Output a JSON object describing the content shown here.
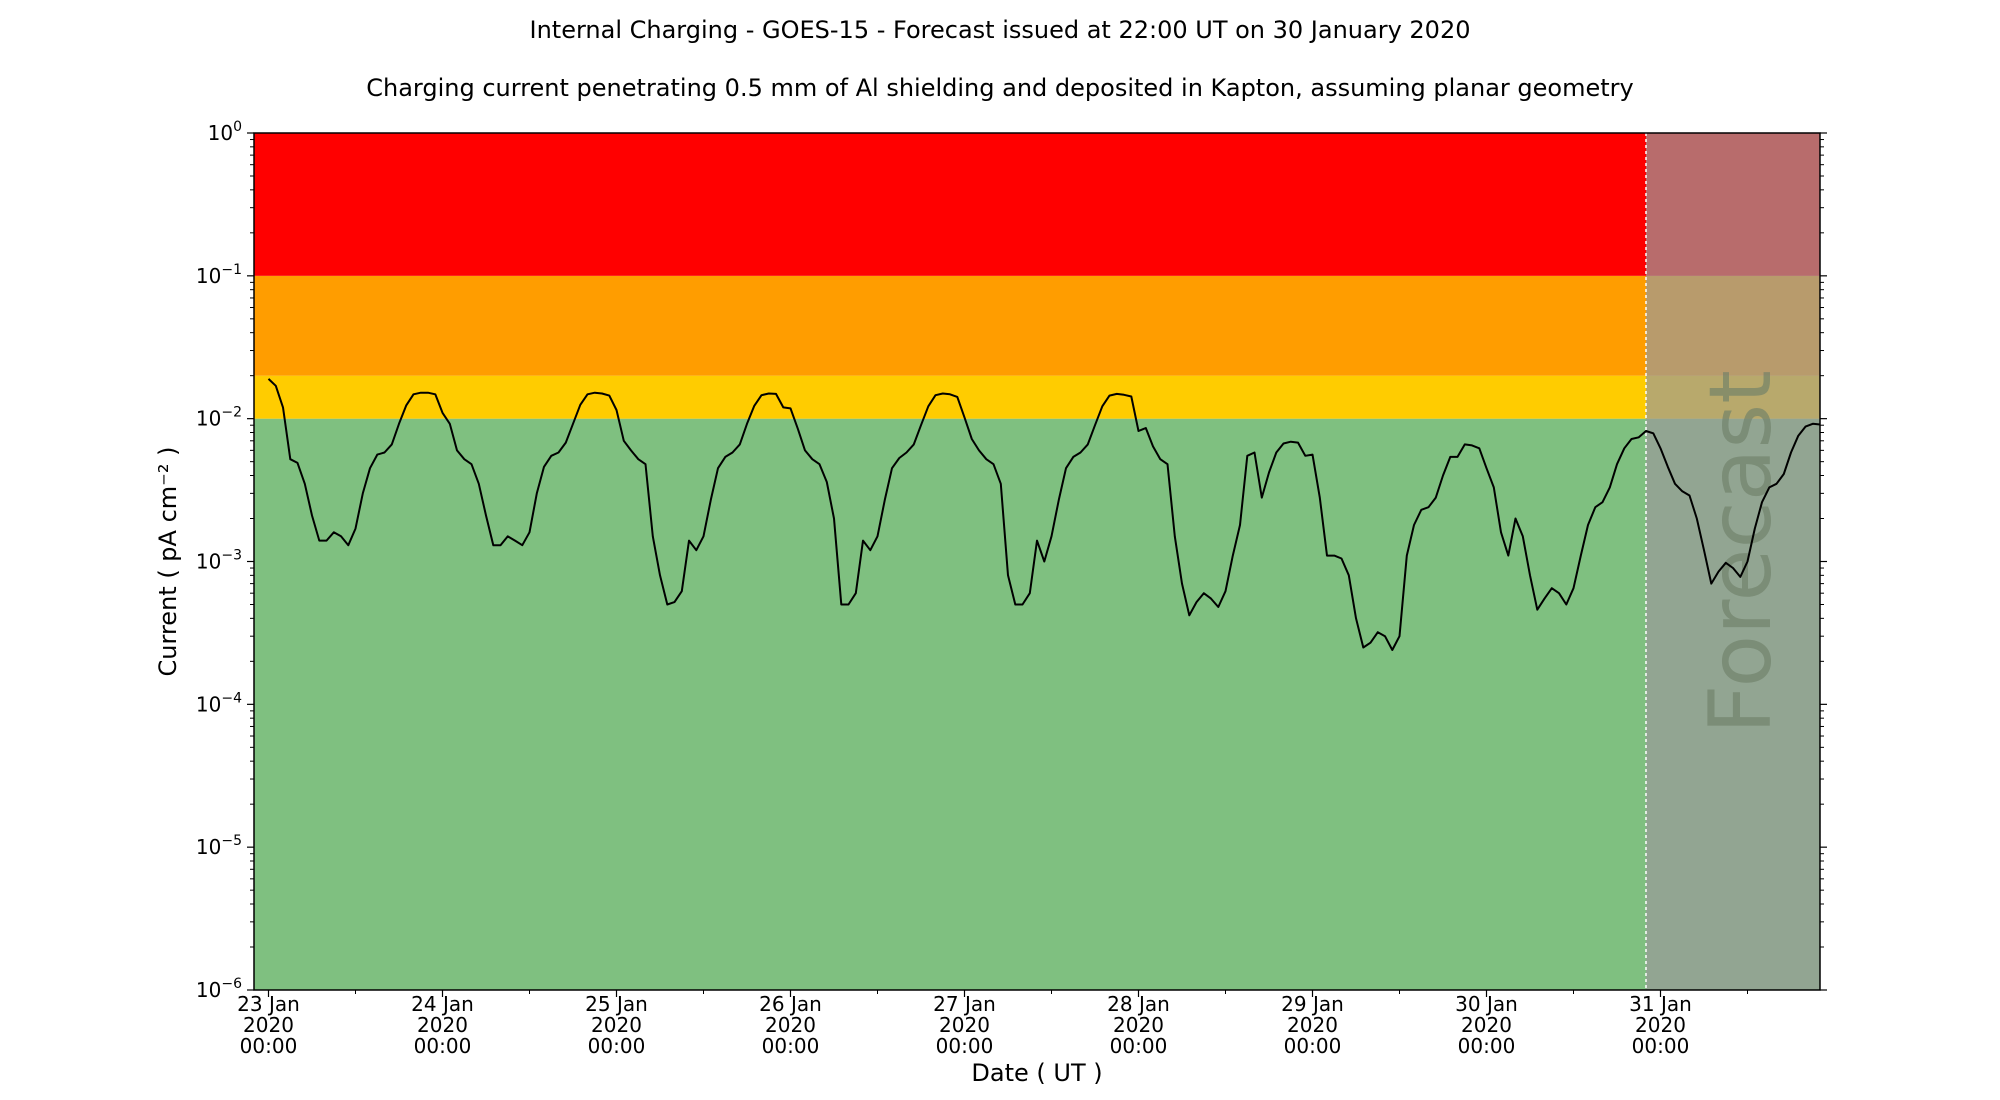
{
  "chart_data": {
    "type": "line",
    "title": "Internal Charging - GOES-15 - Forecast issued at 22:00 UT on 30 January 2020",
    "subtitle": "Charging current penetrating 0.5 mm of Al shielding and deposited in Kapton, assuming planar geometry",
    "xlabel": "Date ( UT )",
    "ylabel": "Current ( pA cm⁻² )",
    "y_scale": "log",
    "ylim": [
      1e-06,
      1
    ],
    "xlim": [
      "2020-01-22 22:00",
      "2020-01-31 22:00"
    ],
    "forecast_start": "2020-01-30 22:00",
    "forecast_label": "Forecast",
    "grid": false,
    "x_ticks": [
      {
        "date": "2020-01-23 00:00",
        "label": "23 Jan\n2020\n00:00"
      },
      {
        "date": "2020-01-24 00:00",
        "label": "24 Jan\n2020\n00:00"
      },
      {
        "date": "2020-01-25 00:00",
        "label": "25 Jan\n2020\n00:00"
      },
      {
        "date": "2020-01-26 00:00",
        "label": "26 Jan\n2020\n00:00"
      },
      {
        "date": "2020-01-27 00:00",
        "label": "27 Jan\n2020\n00:00"
      },
      {
        "date": "2020-01-28 00:00",
        "label": "28 Jan\n2020\n00:00"
      },
      {
        "date": "2020-01-29 00:00",
        "label": "29 Jan\n2020\n00:00"
      },
      {
        "date": "2020-01-30 00:00",
        "label": "30 Jan\n2020\n00:00"
      },
      {
        "date": "2020-01-31 00:00",
        "label": "31 Jan\n2020\n00:00"
      }
    ],
    "y_ticks": [
      {
        "value": 1e-06,
        "base": "10",
        "exp": "−6"
      },
      {
        "value": 1e-05,
        "base": "10",
        "exp": "−5"
      },
      {
        "value": 0.0001,
        "base": "10",
        "exp": "−4"
      },
      {
        "value": 0.001,
        "base": "10",
        "exp": "−3"
      },
      {
        "value": 0.01,
        "base": "10",
        "exp": "−2"
      },
      {
        "value": 0.1,
        "base": "10",
        "exp": "−1"
      },
      {
        "value": 1,
        "base": "10",
        "exp": "0"
      }
    ],
    "bands": [
      {
        "from": 1e-06,
        "to": 0.01,
        "color": "#7fc080"
      },
      {
        "from": 0.01,
        "to": 0.02,
        "color": "#ffcc00"
      },
      {
        "from": 0.02,
        "to": 0.1,
        "color": "#ff9d00"
      },
      {
        "from": 0.1,
        "to": 1,
        "color": "#ff0000"
      }
    ],
    "forecast_overlay_color": "#9a9a9a",
    "line_color": "#000000",
    "series": [
      {
        "x": [
          "2020-01-23 00:00",
          "2020-01-23 01:00",
          "2020-01-23 02:00",
          "2020-01-23 03:00",
          "2020-01-23 04:00",
          "2020-01-23 05:00",
          "2020-01-23 06:00",
          "2020-01-23 07:00",
          "2020-01-23 08:00",
          "2020-01-23 09:00",
          "2020-01-23 10:00",
          "2020-01-23 11:00",
          "2020-01-23 12:00",
          "2020-01-23 13:00",
          "2020-01-23 14:00",
          "2020-01-23 15:00",
          "2020-01-23 16:00",
          "2020-01-23 17:00",
          "2020-01-23 18:00",
          "2020-01-23 19:00",
          "2020-01-23 20:00",
          "2020-01-23 21:00",
          "2020-01-23 22:00",
          "2020-01-23 23:00",
          "2020-01-24 00:00",
          "2020-01-24 01:00",
          "2020-01-24 02:00",
          "2020-01-24 03:00",
          "2020-01-24 04:00",
          "2020-01-24 05:00",
          "2020-01-24 06:00",
          "2020-01-24 07:00",
          "2020-01-24 08:00",
          "2020-01-24 09:00",
          "2020-01-24 10:00",
          "2020-01-24 11:00",
          "2020-01-24 12:00",
          "2020-01-24 13:00",
          "2020-01-24 14:00",
          "2020-01-24 15:00",
          "2020-01-24 16:00",
          "2020-01-24 17:00",
          "2020-01-24 18:00",
          "2020-01-24 19:00",
          "2020-01-24 20:00",
          "2020-01-24 21:00",
          "2020-01-24 22:00",
          "2020-01-24 23:00",
          "2020-01-25 00:00",
          "2020-01-25 01:00",
          "2020-01-25 02:00",
          "2020-01-25 03:00",
          "2020-01-25 04:00",
          "2020-01-25 05:00",
          "2020-01-25 06:00",
          "2020-01-25 07:00",
          "2020-01-25 08:00",
          "2020-01-25 09:00",
          "2020-01-25 10:00",
          "2020-01-25 11:00",
          "2020-01-25 12:00",
          "2020-01-25 13:00",
          "2020-01-25 14:00",
          "2020-01-25 15:00",
          "2020-01-25 16:00",
          "2020-01-25 17:00",
          "2020-01-25 18:00",
          "2020-01-25 19:00",
          "2020-01-25 20:00",
          "2020-01-25 21:00",
          "2020-01-25 22:00",
          "2020-01-25 23:00",
          "2020-01-26 00:00",
          "2020-01-26 01:00",
          "2020-01-26 02:00",
          "2020-01-26 03:00",
          "2020-01-26 04:00",
          "2020-01-26 05:00",
          "2020-01-26 06:00",
          "2020-01-26 07:00",
          "2020-01-26 08:00",
          "2020-01-26 09:00",
          "2020-01-26 10:00",
          "2020-01-26 11:00",
          "2020-01-26 12:00",
          "2020-01-26 13:00",
          "2020-01-26 14:00",
          "2020-01-26 15:00",
          "2020-01-26 16:00",
          "2020-01-26 17:00",
          "2020-01-26 18:00",
          "2020-01-26 19:00",
          "2020-01-26 20:00",
          "2020-01-26 21:00",
          "2020-01-26 22:00",
          "2020-01-26 23:00",
          "2020-01-27 00:00",
          "2020-01-27 01:00",
          "2020-01-27 02:00",
          "2020-01-27 03:00",
          "2020-01-27 04:00",
          "2020-01-27 05:00",
          "2020-01-27 06:00",
          "2020-01-27 07:00",
          "2020-01-27 08:00",
          "2020-01-27 09:00",
          "2020-01-27 10:00",
          "2020-01-27 11:00",
          "2020-01-27 12:00",
          "2020-01-27 13:00",
          "2020-01-27 14:00",
          "2020-01-27 15:00",
          "2020-01-27 16:00",
          "2020-01-27 17:00",
          "2020-01-27 18:00",
          "2020-01-27 19:00",
          "2020-01-27 20:00",
          "2020-01-27 21:00",
          "2020-01-27 22:00",
          "2020-01-27 23:00",
          "2020-01-28 00:00",
          "2020-01-28 01:00",
          "2020-01-28 02:00",
          "2020-01-28 03:00",
          "2020-01-28 04:00",
          "2020-01-28 05:00",
          "2020-01-28 06:00",
          "2020-01-28 07:00",
          "2020-01-28 08:00",
          "2020-01-28 09:00",
          "2020-01-28 10:00",
          "2020-01-28 11:00",
          "2020-01-28 12:00",
          "2020-01-28 13:00",
          "2020-01-28 14:00",
          "2020-01-28 15:00",
          "2020-01-28 16:00",
          "2020-01-28 17:00",
          "2020-01-28 18:00",
          "2020-01-28 19:00",
          "2020-01-28 20:00",
          "2020-01-28 21:00",
          "2020-01-28 22:00",
          "2020-01-28 23:00",
          "2020-01-29 00:00",
          "2020-01-29 01:00",
          "2020-01-29 02:00",
          "2020-01-29 03:00",
          "2020-01-29 04:00",
          "2020-01-29 05:00",
          "2020-01-29 06:00",
          "2020-01-29 07:00",
          "2020-01-29 08:00",
          "2020-01-29 09:00",
          "2020-01-29 10:00",
          "2020-01-29 11:00",
          "2020-01-29 12:00",
          "2020-01-29 13:00",
          "2020-01-29 14:00",
          "2020-01-29 15:00",
          "2020-01-29 16:00",
          "2020-01-29 17:00",
          "2020-01-29 18:00",
          "2020-01-29 19:00",
          "2020-01-29 20:00",
          "2020-01-29 21:00",
          "2020-01-29 22:00",
          "2020-01-29 23:00",
          "2020-01-30 00:00",
          "2020-01-30 01:00",
          "2020-01-30 02:00",
          "2020-01-30 03:00",
          "2020-01-30 04:00",
          "2020-01-30 05:00",
          "2020-01-30 06:00",
          "2020-01-30 07:00",
          "2020-01-30 08:00",
          "2020-01-30 09:00",
          "2020-01-30 10:00",
          "2020-01-30 11:00",
          "2020-01-30 12:00",
          "2020-01-30 13:00",
          "2020-01-30 14:00",
          "2020-01-30 15:00",
          "2020-01-30 16:00",
          "2020-01-30 17:00",
          "2020-01-30 18:00",
          "2020-01-30 19:00",
          "2020-01-30 20:00",
          "2020-01-30 21:00",
          "2020-01-30 22:00",
          "2020-01-30 23:00",
          "2020-01-31 00:00",
          "2020-01-31 01:00",
          "2020-01-31 02:00",
          "2020-01-31 03:00",
          "2020-01-31 04:00",
          "2020-01-31 05:00",
          "2020-01-31 06:00",
          "2020-01-31 07:00",
          "2020-01-31 08:00",
          "2020-01-31 09:00",
          "2020-01-31 10:00",
          "2020-01-31 11:00",
          "2020-01-31 12:00",
          "2020-01-31 13:00",
          "2020-01-31 14:00",
          "2020-01-31 15:00",
          "2020-01-31 16:00",
          "2020-01-31 17:00",
          "2020-01-31 18:00",
          "2020-01-31 19:00",
          "2020-01-31 20:00",
          "2020-01-31 21:00",
          "2020-01-31 22:00"
        ],
        "y": [
          0.019,
          0.017,
          0.012,
          0.0052,
          0.0049,
          0.0035,
          0.0021,
          0.0014,
          0.0014,
          0.0016,
          0.0015,
          0.0013,
          0.0017,
          0.003,
          0.0045,
          0.0056,
          0.0058,
          0.0066,
          0.0092,
          0.0124,
          0.0148,
          0.0152,
          0.0152,
          0.0148,
          0.011,
          0.0092,
          0.006,
          0.0052,
          0.0048,
          0.0035,
          0.0021,
          0.0013,
          0.0013,
          0.0015,
          0.0014,
          0.0013,
          0.0016,
          0.003,
          0.0046,
          0.0055,
          0.0058,
          0.0068,
          0.0092,
          0.0125,
          0.0148,
          0.0152,
          0.015,
          0.0145,
          0.0115,
          0.007,
          0.006,
          0.0052,
          0.0048,
          0.0015,
          0.0008,
          0.0005,
          0.00052,
          0.00062,
          0.0014,
          0.0012,
          0.0015,
          0.0027,
          0.0045,
          0.0054,
          0.0058,
          0.0066,
          0.0092,
          0.0123,
          0.0146,
          0.015,
          0.0149,
          0.012,
          0.0118,
          0.0085,
          0.006,
          0.0052,
          0.0048,
          0.0036,
          0.002,
          0.0005,
          0.0005,
          0.0006,
          0.0014,
          0.0012,
          0.0015,
          0.0027,
          0.0045,
          0.0053,
          0.0058,
          0.0066,
          0.009,
          0.0122,
          0.0146,
          0.015,
          0.0148,
          0.0142,
          0.0102,
          0.0072,
          0.006,
          0.0052,
          0.0048,
          0.0035,
          0.0008,
          0.0005,
          0.0005,
          0.0006,
          0.0014,
          0.001,
          0.0015,
          0.0027,
          0.0045,
          0.0054,
          0.0058,
          0.0066,
          0.009,
          0.0122,
          0.0145,
          0.0149,
          0.0147,
          0.0143,
          0.0082,
          0.0086,
          0.0064,
          0.0052,
          0.0048,
          0.0015,
          0.0007,
          0.00042,
          0.00052,
          0.0006,
          0.00055,
          0.00048,
          0.00062,
          0.0011,
          0.0018,
          0.0055,
          0.0058,
          0.0028,
          0.0042,
          0.0058,
          0.0067,
          0.0069,
          0.0068,
          0.0055,
          0.0056,
          0.0028,
          0.0011,
          0.0011,
          0.00105,
          0.0008,
          0.0004,
          0.00025,
          0.00027,
          0.00032,
          0.0003,
          0.00024,
          0.0003,
          0.0011,
          0.0018,
          0.0023,
          0.0024,
          0.0028,
          0.004,
          0.0054,
          0.0054,
          0.0066,
          0.0065,
          0.0062,
          0.0045,
          0.0033,
          0.0016,
          0.0011,
          0.002,
          0.0015,
          0.0008,
          0.00046,
          0.00055,
          0.00065,
          0.0006,
          0.0005,
          0.00065,
          0.0011,
          0.0018,
          0.0024,
          0.0026,
          0.0033,
          0.0048,
          0.0062,
          0.0072,
          0.0074,
          0.0082,
          0.0079,
          0.0062,
          0.0046,
          0.0035,
          0.0031,
          0.0029,
          0.002,
          0.0012,
          0.0007,
          0.00085,
          0.00098,
          0.0009,
          0.00078,
          0.001,
          0.0017,
          0.0026,
          0.0033,
          0.0035,
          0.0041,
          0.0058,
          0.0076,
          0.0088,
          0.0092,
          0.0091
        ]
      }
    ]
  }
}
